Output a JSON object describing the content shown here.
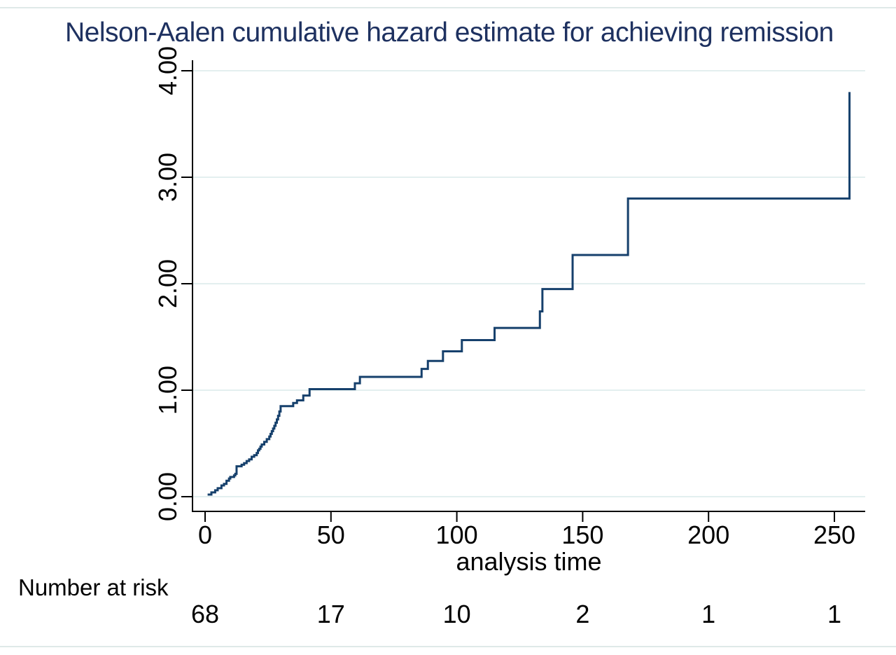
{
  "chart_data": {
    "type": "line",
    "line_style": "step",
    "title": "Nelson-Aalen cumulative hazard estimate for achieving remission",
    "xlabel": "analysis time",
    "ylabel": "",
    "x_ticks": [
      0,
      50,
      100,
      150,
      200,
      250
    ],
    "y_tick_labels": [
      "0.00",
      "1.00",
      "2.00",
      "3.00",
      "4.00"
    ],
    "xlim": [
      0,
      262
    ],
    "ylim": [
      0,
      4
    ],
    "grid": "horizontal-light",
    "legend": "none",
    "colors": {
      "line": "#16406c",
      "grid": "#e3efef",
      "axis": "#000000",
      "title": "#1e3160",
      "frame_rule": "#dfe9e8"
    },
    "steps": [
      [
        1,
        0.02
      ],
      [
        2.5,
        0.04
      ],
      [
        4,
        0.06
      ],
      [
        5,
        0.08
      ],
      [
        6.5,
        0.105
      ],
      [
        7.5,
        0.12
      ],
      [
        8.5,
        0.15
      ],
      [
        9.5,
        0.17
      ],
      [
        10,
        0.185
      ],
      [
        11.5,
        0.2
      ],
      [
        12,
        0.215
      ],
      [
        12.5,
        0.285
      ],
      [
        14.5,
        0.3
      ],
      [
        15.5,
        0.315
      ],
      [
        16.5,
        0.335
      ],
      [
        17.5,
        0.35
      ],
      [
        18.5,
        0.375
      ],
      [
        19.5,
        0.39
      ],
      [
        20.5,
        0.41
      ],
      [
        21,
        0.435
      ],
      [
        21.5,
        0.45
      ],
      [
        22,
        0.47
      ],
      [
        22.5,
        0.49
      ],
      [
        23.5,
        0.515
      ],
      [
        24.5,
        0.54
      ],
      [
        25.5,
        0.565
      ],
      [
        26,
        0.59
      ],
      [
        26.5,
        0.615
      ],
      [
        27,
        0.64
      ],
      [
        27.5,
        0.665
      ],
      [
        28,
        0.695
      ],
      [
        28.5,
        0.725
      ],
      [
        29,
        0.76
      ],
      [
        29.5,
        0.8
      ],
      [
        30,
        0.85
      ],
      [
        35,
        0.88
      ],
      [
        36.5,
        0.905
      ],
      [
        39,
        0.95
      ],
      [
        41.5,
        1.01
      ],
      [
        59.5,
        1.065
      ],
      [
        61.5,
        1.125
      ],
      [
        86,
        1.2
      ],
      [
        88.5,
        1.275
      ],
      [
        94.5,
        1.365
      ],
      [
        102,
        1.47
      ],
      [
        115,
        1.585
      ],
      [
        133,
        1.74
      ],
      [
        134,
        1.95
      ],
      [
        146,
        2.27
      ],
      [
        168,
        2.8
      ],
      [
        256,
        3.8
      ]
    ],
    "number_at_risk": {
      "label": "Number at risk",
      "times": [
        0,
        50,
        100,
        150,
        200,
        250
      ],
      "values": [
        "68",
        "17",
        "10",
        "2",
        "1",
        "1"
      ]
    }
  }
}
